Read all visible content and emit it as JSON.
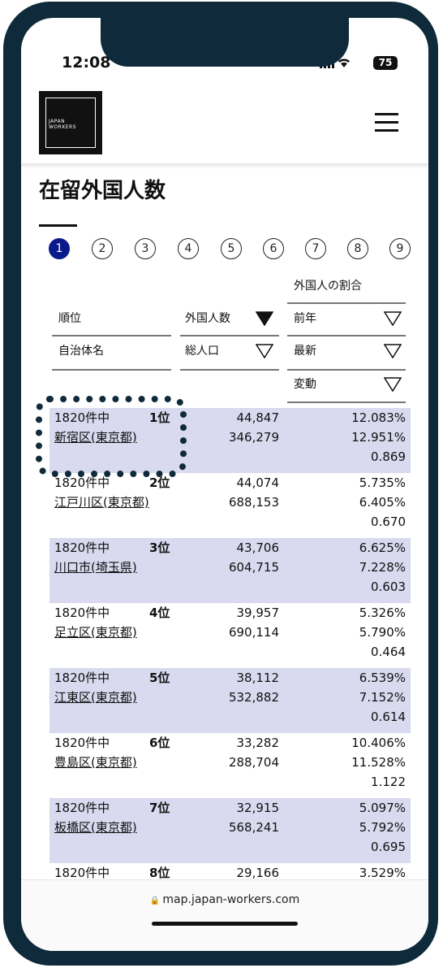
{
  "status_bar": {
    "time": "12:08",
    "battery": "75"
  },
  "header": {
    "logo_lines": [
      "JAPAN",
      "WORKERS"
    ]
  },
  "page": {
    "title": "在留外国人数",
    "pagination": [
      "1",
      "2",
      "3",
      "4",
      "5",
      "6",
      "7",
      "8",
      "9"
    ]
  },
  "table": {
    "header": {
      "ratio_group": "外国人の割合",
      "rank": "順位",
      "foreign": "外国人数",
      "prev_year": "前年",
      "municipality": "自治体名",
      "total_population": "総人口",
      "latest": "最新",
      "change": "変動"
    },
    "rows": [
      {
        "count": "1820件中",
        "rank": "1位",
        "name": "新宿区(東京都)",
        "foreign": "44,847",
        "population": "346,279",
        "prev": "12.083%",
        "latest": "12.951%",
        "change": "0.869"
      },
      {
        "count": "1820件中",
        "rank": "2位",
        "name": "江戸川区(東京都)",
        "foreign": "44,074",
        "population": "688,153",
        "prev": "5.735%",
        "latest": "6.405%",
        "change": "0.670"
      },
      {
        "count": "1820件中",
        "rank": "3位",
        "name": "川口市(埼玉県)",
        "foreign": "43,706",
        "population": "604,715",
        "prev": "6.625%",
        "latest": "7.228%",
        "change": "0.603"
      },
      {
        "count": "1820件中",
        "rank": "4位",
        "name": "足立区(東京都)",
        "foreign": "39,957",
        "population": "690,114",
        "prev": "5.326%",
        "latest": "5.790%",
        "change": "0.464"
      },
      {
        "count": "1820件中",
        "rank": "5位",
        "name": "江東区(東京都)",
        "foreign": "38,112",
        "population": "532,882",
        "prev": "6.539%",
        "latest": "7.152%",
        "change": "0.614"
      },
      {
        "count": "1820件中",
        "rank": "6位",
        "name": "豊島区(東京都)",
        "foreign": "33,282",
        "population": "288,704",
        "prev": "10.406%",
        "latest": "11.528%",
        "change": "1.122"
      },
      {
        "count": "1820件中",
        "rank": "7位",
        "name": "板橋区(東京都)",
        "foreign": "32,915",
        "population": "568,241",
        "prev": "5.097%",
        "latest": "5.792%",
        "change": "0.695"
      },
      {
        "count": "1820件中",
        "rank": "8位",
        "foreign": "29,166",
        "prev": "3.529%"
      }
    ]
  },
  "browser": {
    "url": "map.japan-workers.com"
  }
}
